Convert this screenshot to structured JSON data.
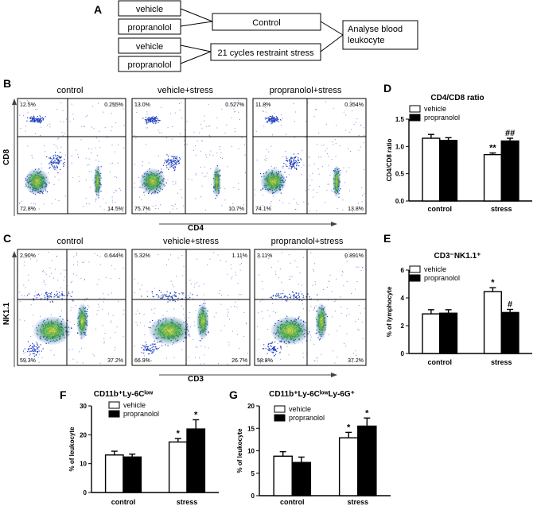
{
  "panel_a": {
    "letter": "A",
    "boxes": {
      "vehicle_1": "vehicle",
      "propranolol_1": "propranolol",
      "control": "Control",
      "vehicle_2": "vehicle",
      "propranolol_2": "propranolol",
      "stress": "21 cycles restraint stress",
      "analyse_line1": "Analyse blood",
      "analyse_line2": "leukocyte"
    }
  },
  "panel_b": {
    "letter": "B",
    "ylabel": "CD8",
    "xlabel": "CD4",
    "plots": [
      {
        "title": "control",
        "tl": "12.5%",
        "tr": "0.255%",
        "bl": "72.8%",
        "br": "14.5%"
      },
      {
        "title": "vehicle+stress",
        "tl": "13.0%",
        "tr": "0.527%",
        "bl": "75.7%",
        "br": "10.7%"
      },
      {
        "title": "propranolol+stress",
        "tl": "11.8%",
        "tr": "0.354%",
        "bl": "74.1%",
        "br": "13.8%"
      }
    ]
  },
  "panel_c": {
    "letter": "C",
    "ylabel": "NK1.1",
    "xlabel": "CD3",
    "plots": [
      {
        "title": "control",
        "tl": "2.90%",
        "tr": "0.644%",
        "bl": "59.3%",
        "br": "37.2%"
      },
      {
        "title": "vehicle+stress",
        "tl": "5.32%",
        "tr": "1.11%",
        "bl": "66.9%",
        "br": "26.7%"
      },
      {
        "title": "propranolol+stress",
        "tl": "3.11%",
        "tr": "0.891%",
        "bl": "58.8%",
        "br": "37.2%"
      }
    ]
  },
  "chart_data": [
    {
      "id": "D",
      "type": "bar",
      "title": "CD4/CD8 ratio",
      "ylabel": "CD4/CD8 ratio",
      "categories": [
        "control",
        "stress"
      ],
      "ylim": [
        0,
        1.5
      ],
      "yticks": [
        "0.0",
        "0.5",
        "1.0",
        "1.5"
      ],
      "series": [
        {
          "name": "vehicle",
          "values": [
            1.15,
            0.85
          ],
          "errors": [
            0.07,
            0.03
          ]
        },
        {
          "name": "propranolol",
          "values": [
            1.11,
            1.1
          ],
          "errors": [
            0.05,
            0.05
          ]
        }
      ],
      "annotations": [
        {
          "category": 1,
          "series": 0,
          "text": "**"
        },
        {
          "category": 1,
          "series": 1,
          "text": "##"
        }
      ]
    },
    {
      "id": "E",
      "type": "bar",
      "title": "CD3⁻NK1.1⁺",
      "ylabel": "% of lymphocyte",
      "categories": [
        "control",
        "stress"
      ],
      "ylim": [
        0,
        6
      ],
      "yticks": [
        "0",
        "2",
        "4",
        "6"
      ],
      "series": [
        {
          "name": "vehicle",
          "values": [
            2.85,
            4.45
          ],
          "errors": [
            0.3,
            0.28
          ]
        },
        {
          "name": "propranolol",
          "values": [
            2.9,
            2.95
          ],
          "errors": [
            0.25,
            0.22
          ]
        }
      ],
      "annotations": [
        {
          "category": 1,
          "series": 0,
          "text": "*"
        },
        {
          "category": 1,
          "series": 1,
          "text": "#"
        }
      ]
    },
    {
      "id": "F",
      "type": "bar",
      "title": "CD11b⁺Ly-6Cˡᵒʷ",
      "ylabel": "% of leukocyte",
      "categories": [
        "control",
        "stress"
      ],
      "ylim": [
        0,
        30
      ],
      "yticks": [
        "0",
        "10",
        "20",
        "30"
      ],
      "series": [
        {
          "name": "vehicle",
          "values": [
            13,
            17.5
          ],
          "errors": [
            1.3,
            1.2
          ]
        },
        {
          "name": "propranolol",
          "values": [
            12.3,
            22
          ],
          "errors": [
            1.0,
            3.2
          ]
        }
      ],
      "annotations": [
        {
          "category": 1,
          "series": 0,
          "text": "*"
        },
        {
          "category": 1,
          "series": 1,
          "text": "*"
        }
      ]
    },
    {
      "id": "G",
      "type": "bar",
      "title": "CD11b⁺Ly-6CˡᵒʷLy-6G⁺",
      "ylabel": "% of leukocyte",
      "categories": [
        "control",
        "stress"
      ],
      "ylim": [
        0,
        20
      ],
      "yticks": [
        "0",
        "5",
        "10",
        "15",
        "20"
      ],
      "series": [
        {
          "name": "vehicle",
          "values": [
            8.8,
            12.9
          ],
          "errors": [
            1.0,
            1.2
          ]
        },
        {
          "name": "propranolol",
          "values": [
            7.4,
            15.5
          ],
          "errors": [
            1.2,
            1.8
          ]
        }
      ],
      "annotations": [
        {
          "category": 1,
          "series": 0,
          "text": "*"
        },
        {
          "category": 1,
          "series": 1,
          "text": "*"
        }
      ]
    }
  ],
  "colors": {
    "vehicle": "#ffffff",
    "propranolol": "#000000",
    "scatter_blue": "#1f3fbf",
    "scatter_green": "#3aa83a",
    "scatter_yellow": "#e8e030"
  }
}
